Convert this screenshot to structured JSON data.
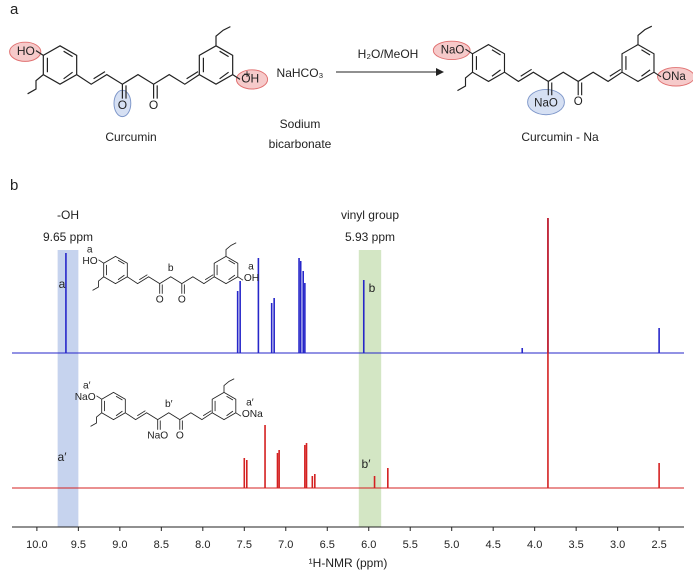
{
  "panel_a": {
    "label": "a",
    "reactant": {
      "labels": [
        "HO",
        "OH",
        "O",
        "O"
      ],
      "name": "Curcumin"
    },
    "plus": "+",
    "reagent": "NaHCO₃",
    "reagent_name": [
      "Sodium",
      "bicarbonate"
    ],
    "conditions": "H₂O/MeOH",
    "product": {
      "labels": [
        "NaO",
        "ONa",
        "NaO",
        "O"
      ],
      "name": "Curcumin - Na"
    }
  },
  "panel_b": {
    "label": "b",
    "insets": [
      {
        "labels": [
          "HO",
          "a",
          "OH",
          "a",
          "b",
          "O",
          "O"
        ]
      },
      {
        "labels": [
          "NaO",
          "a′",
          "ONa",
          "a′",
          "b′",
          "NaO",
          "O"
        ]
      }
    ]
  },
  "chart_data": {
    "type": "spectrum",
    "xlabel": "¹H-NMR (ppm)",
    "xlim": [
      10.3,
      2.2
    ],
    "xticks": [
      {
        "value": 10,
        "label": "10.0"
      },
      9.5,
      {
        "value": 9,
        "label": "9.0"
      },
      8.5,
      {
        "value": 8,
        "label": "8.0"
      },
      7.5,
      {
        "value": 7,
        "label": "7.0"
      },
      6.5,
      {
        "value": 6,
        "label": "6.0"
      },
      5.5,
      {
        "value": 5,
        "label": "5.0"
      },
      4.5,
      {
        "value": 4,
        "label": "4.0"
      },
      3.5,
      {
        "value": 3,
        "label": "3.0"
      },
      2.5
    ],
    "series": [
      {
        "name": "Curcumin",
        "color": "#2626c9",
        "x": [
          9.65,
          7.58,
          7.55,
          7.33,
          7.17,
          7.14,
          6.84,
          6.82,
          6.79,
          6.77,
          6.06,
          4.15,
          3.84,
          2.5
        ],
        "values": [
          100,
          62,
          72,
          95,
          50,
          55,
          95,
          92,
          82,
          70,
          73,
          5,
          135,
          25
        ]
      },
      {
        "name": "Curcumin - Na",
        "color": "#d42020",
        "x": [
          7.5,
          7.47,
          7.25,
          7.1,
          7.08,
          6.77,
          6.75,
          6.68,
          6.65,
          5.93,
          5.77,
          3.84,
          2.5
        ],
        "values": [
          30,
          28,
          63,
          35,
          38,
          43,
          45,
          12,
          14,
          12,
          20,
          270,
          25
        ]
      }
    ],
    "highlights": [
      {
        "xlim": [
          9.75,
          9.5
        ],
        "color": "#c6d3ee",
        "labels": [
          "-OH",
          "9.65 ppm"
        ]
      },
      {
        "xlim": [
          6.12,
          5.85
        ],
        "color": "#d3e6c4",
        "labels": [
          "vinyl group",
          "5.93 ppm"
        ]
      }
    ],
    "peak_labels": [
      "a",
      "b",
      "a′",
      "b′"
    ]
  }
}
